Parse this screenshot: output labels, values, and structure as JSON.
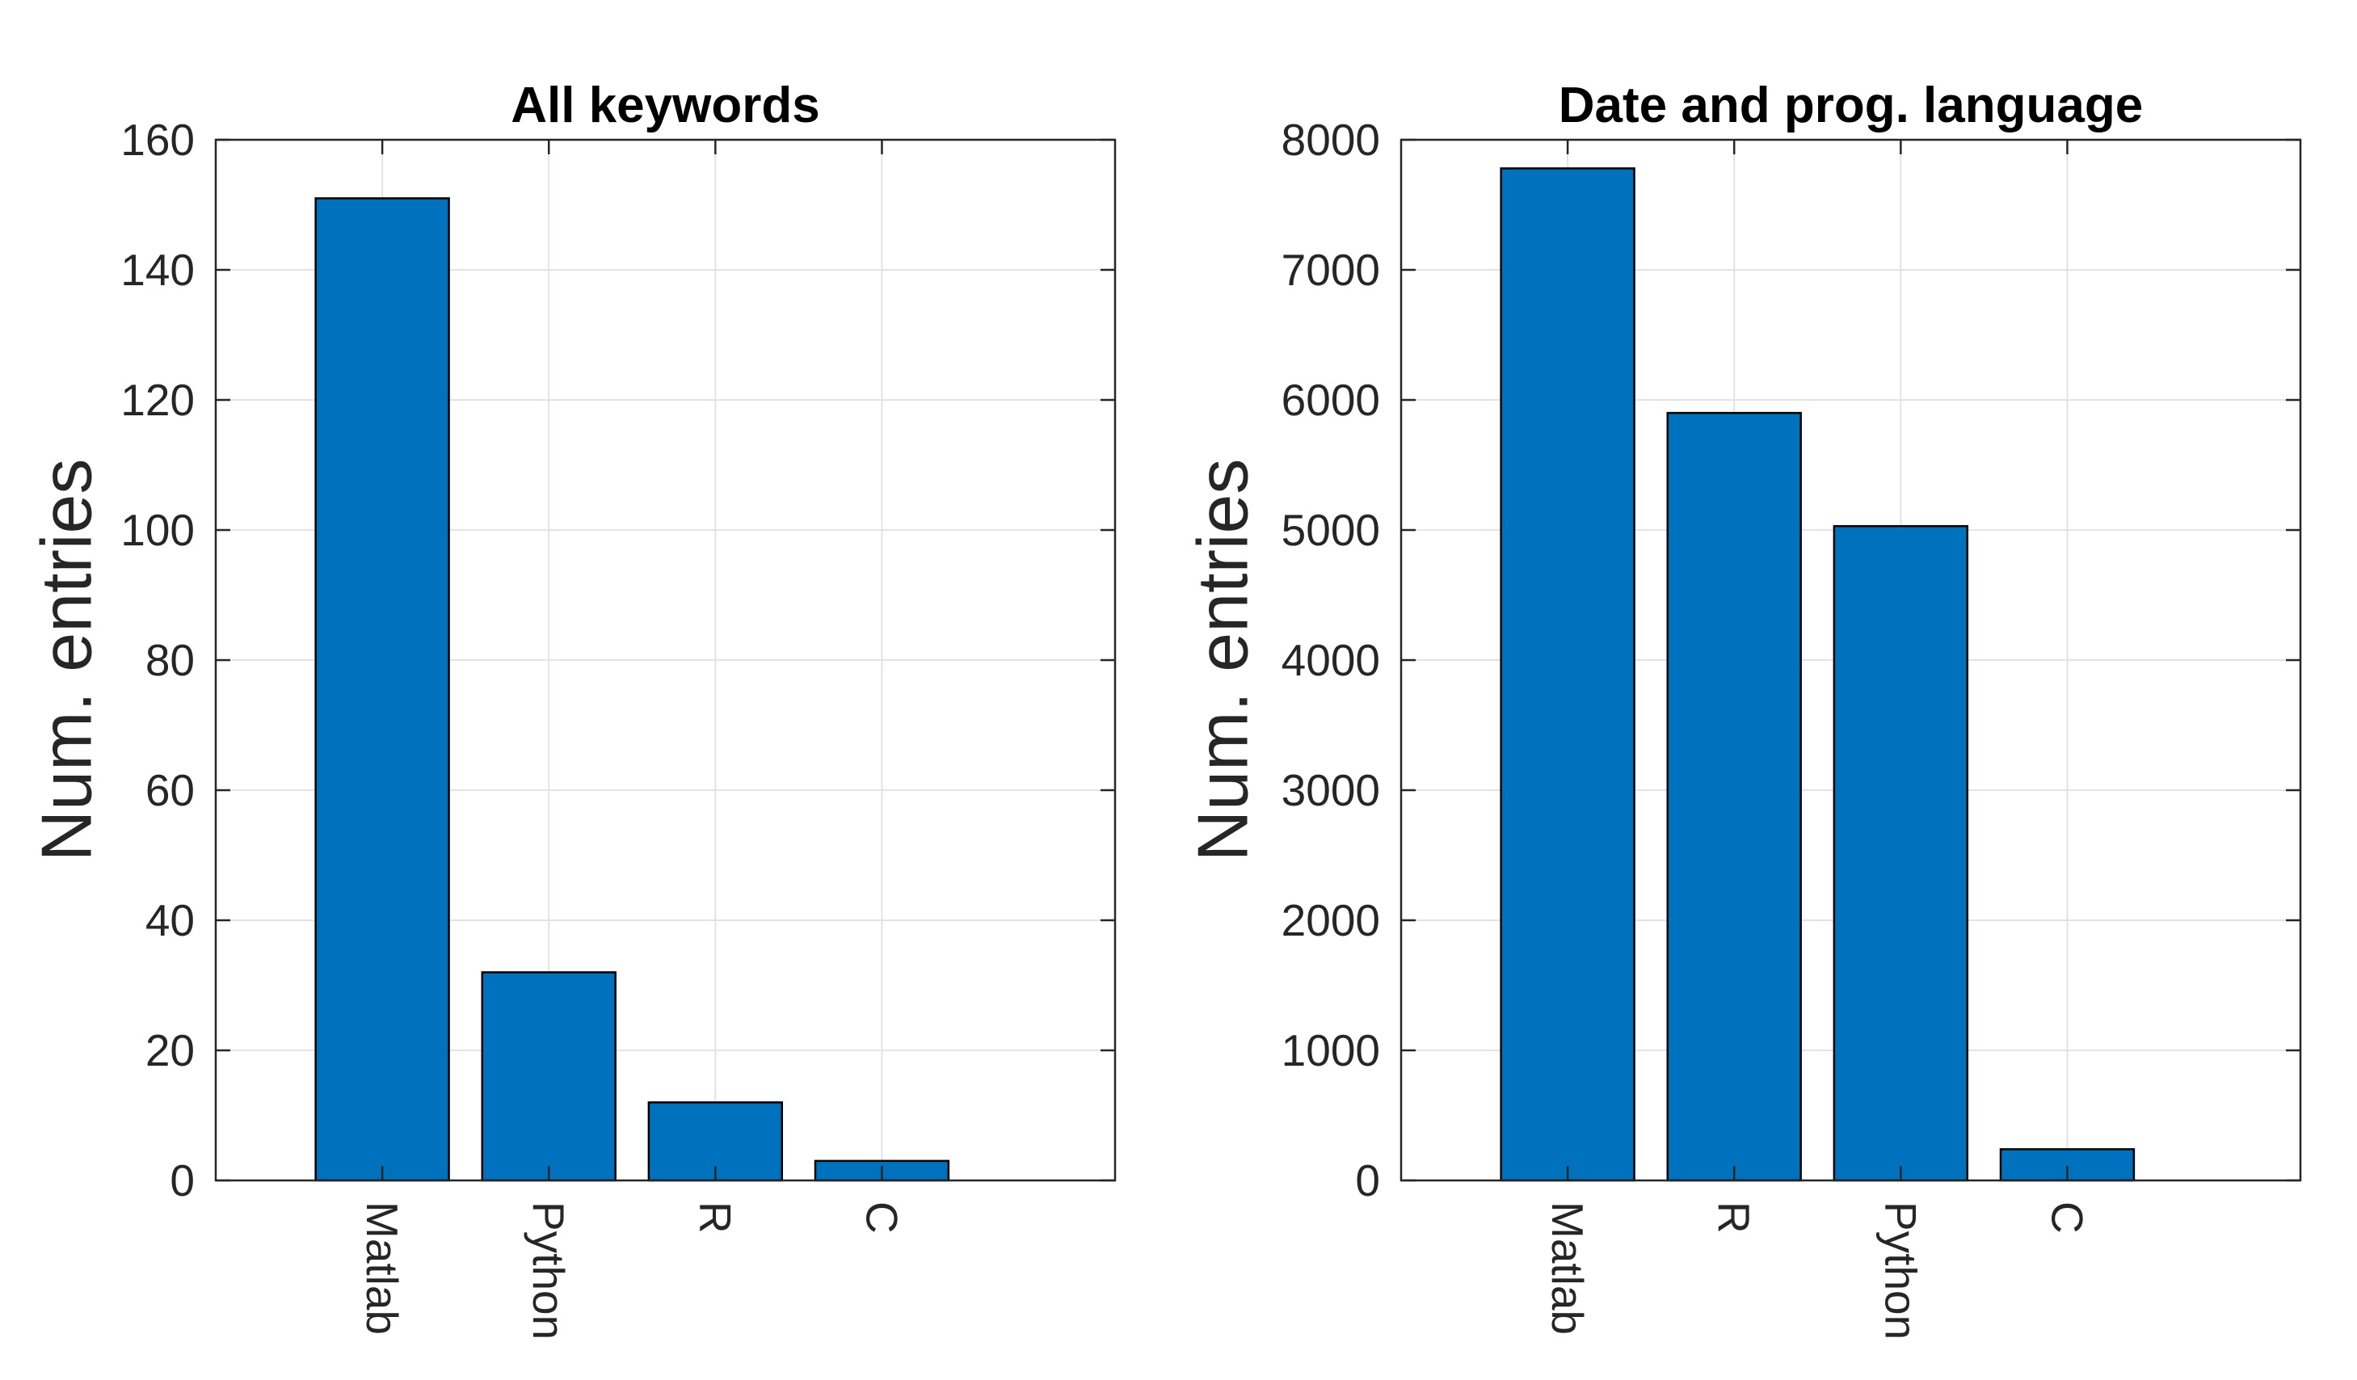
{
  "chart_data": [
    {
      "type": "bar",
      "title": "All keywords",
      "ylabel": "Num. entries",
      "xlabel": "",
      "categories": [
        "Matlab",
        "Python",
        "R",
        "C"
      ],
      "values": [
        151,
        32,
        12,
        3
      ],
      "ylim": [
        0,
        160
      ],
      "yticks": [
        0,
        20,
        40,
        60,
        80,
        100,
        120,
        140,
        160
      ],
      "ytick_labels": [
        "0",
        "20",
        "40",
        "60",
        "80",
        "100",
        "120",
        "140",
        "160"
      ],
      "xlim": [
        0,
        5.4
      ],
      "grid": true,
      "bar_color": "#0072BD",
      "category_label_orientation": "rotated-vertical"
    },
    {
      "type": "bar",
      "title": "Date and prog. language",
      "ylabel": "Num. entries",
      "xlabel": "",
      "categories": [
        "Matlab",
        "R",
        "Python",
        "C"
      ],
      "values": [
        7780,
        5900,
        5030,
        240
      ],
      "ylim": [
        0,
        8000
      ],
      "yticks": [
        0,
        1000,
        2000,
        3000,
        4000,
        5000,
        6000,
        7000,
        8000
      ],
      "ytick_labels": [
        "0",
        "1000",
        "2000",
        "3000",
        "4000",
        "5000",
        "6000",
        "7000",
        "8000"
      ],
      "xlim": [
        0,
        5.4
      ],
      "grid": true,
      "bar_color": "#0072BD",
      "category_label_orientation": "rotated-vertical"
    }
  ]
}
